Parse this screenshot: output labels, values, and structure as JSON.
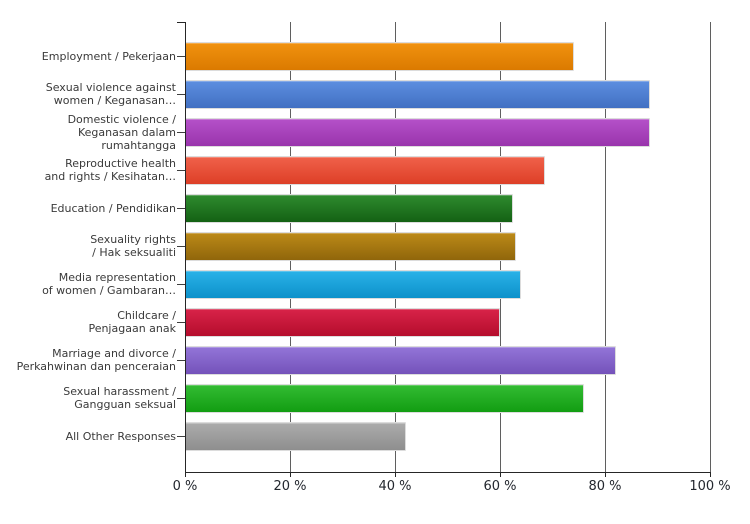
{
  "chart_data": {
    "type": "bar",
    "orientation": "horizontal",
    "title": "",
    "xlabel": "",
    "ylabel": "",
    "unit": "%",
    "grid": true,
    "legend": false,
    "x_axis": {
      "min": 0,
      "max": 100,
      "tick_values": [
        0,
        20,
        40,
        60,
        80,
        100
      ],
      "tick_labels": [
        "0 %",
        "20 %",
        "40 %",
        "60 %",
        "80 %",
        "100 %"
      ]
    },
    "categories": [
      "Employment / Pekerjaan",
      "Sexual violence against women / Keganasan…",
      "Domestic violence / Keganasan dalam rumahtangga",
      "Reproductive health and rights / Kesihatan…",
      "Education / Pendidikan",
      "Sexuality rights / Hak seksualiti",
      "Media representation of women / Gambaran…",
      "Childcare / Penjagaan anak",
      "Marriage and divorce / Perkahwinan dan penceraian",
      "Sexual harassment / Gangguan seksual",
      "All Other Responses"
    ],
    "values": [
      74,
      88.5,
      88.5,
      68.5,
      62.5,
      63,
      64,
      60,
      82,
      76,
      42
    ],
    "bars": [
      {
        "label_lines": [
          "Employment / Pekerjaan"
        ],
        "value": 74,
        "color": {
          "top": "#F1920F",
          "bottom": "#DB7A00"
        }
      },
      {
        "label_lines": [
          "Sexual violence against",
          "women / Keganasan…"
        ],
        "value": 88.5,
        "color": {
          "top": "#5C8EE0",
          "bottom": "#4270C2"
        }
      },
      {
        "label_lines": [
          "Domestic violence /",
          "Keganasan dalam rumahtangga"
        ],
        "value": 88.5,
        "color": {
          "top": "#B551C9",
          "bottom": "#9934AC"
        }
      },
      {
        "label_lines": [
          "Reproductive health",
          "and rights / Kesihatan…"
        ],
        "value": 68.5,
        "color": {
          "top": "#F0614A",
          "bottom": "#DD3F27"
        }
      },
      {
        "label_lines": [
          "Education / Pendidikan"
        ],
        "value": 62.5,
        "color": {
          "top": "#2E8B2E",
          "bottom": "#146114"
        }
      },
      {
        "label_lines": [
          "Sexuality rights",
          "/ Hak seksualiti"
        ],
        "value": 63,
        "color": {
          "top": "#BC8A18",
          "bottom": "#90660B"
        }
      },
      {
        "label_lines": [
          "Media representation",
          "of women / Gambaran…"
        ],
        "value": 64,
        "color": {
          "top": "#2AB2E8",
          "bottom": "#0D91CA"
        }
      },
      {
        "label_lines": [
          "Childcare /",
          "Penjagaan anak"
        ],
        "value": 60,
        "color": {
          "top": "#D82349",
          "bottom": "#B50D2C"
        }
      },
      {
        "label_lines": [
          "Marriage and divorce /",
          "Perkahwinan dan penceraian"
        ],
        "value": 82,
        "color": {
          "top": "#9375D8",
          "bottom": "#7452BA"
        }
      },
      {
        "label_lines": [
          "Sexual harassment /",
          "Gangguan seksual"
        ],
        "value": 76,
        "color": {
          "top": "#33BC33",
          "bottom": "#129D12"
        }
      },
      {
        "label_lines": [
          "All Other Responses"
        ],
        "value": 42,
        "color": {
          "top": "#ACACAC",
          "bottom": "#8E8E8E"
        }
      }
    ]
  }
}
